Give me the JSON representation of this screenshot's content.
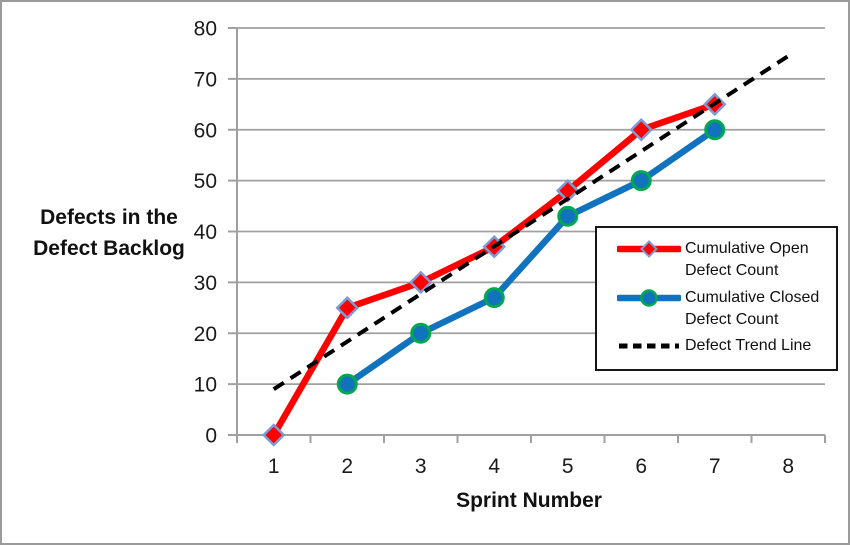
{
  "window": {
    "background": "#FFFFFF",
    "border_color": "#9B9B9B"
  },
  "chart_data": {
    "type": "line",
    "title": "",
    "x_axis": {
      "label": "Sprint Number",
      "ticks": [
        1,
        2,
        3,
        4,
        5,
        6,
        7,
        8
      ]
    },
    "y_axis": {
      "label_line1": "Defects in the",
      "label_line2": "Defect Backlog",
      "ticks": [
        0,
        10,
        20,
        30,
        40,
        50,
        60,
        70,
        80
      ],
      "min": 0,
      "max": 80
    },
    "grid": {
      "horizontal": true,
      "vertical": false,
      "color": "#A0A0A0"
    },
    "axis_color": "#A0A0A0",
    "text_color": "#1A1A1A",
    "legend": {
      "position": "middle-right",
      "border_color": "#161616",
      "background": "#FFFFFF"
    },
    "z_order": [
      0,
      2,
      1
    ],
    "series": [
      {
        "name": "Cumulative Open Defect Count",
        "x": [
          1,
          2,
          3,
          4,
          5,
          6,
          7
        ],
        "values": [
          0,
          25,
          30,
          37,
          48,
          60,
          65
        ],
        "color": "#FE0000",
        "line_style": "solid",
        "marker": "diamond",
        "marker_fill": "#FE0000",
        "marker_stroke": "#7A9CD4"
      },
      {
        "name": "Cumulative Closed Defect Count",
        "x": [
          2,
          3,
          4,
          5,
          6,
          7
        ],
        "values": [
          10,
          20,
          27,
          43,
          50,
          60
        ],
        "color": "#1173BD",
        "line_style": "solid",
        "marker": "circle",
        "marker_fill": "#1173BD",
        "marker_stroke": "#00A84F"
      },
      {
        "name": "Defect Trend Line",
        "x": [
          1,
          8
        ],
        "values": [
          9,
          74.5
        ],
        "color": "#000000",
        "line_style": "dashed",
        "marker": "none"
      }
    ]
  }
}
